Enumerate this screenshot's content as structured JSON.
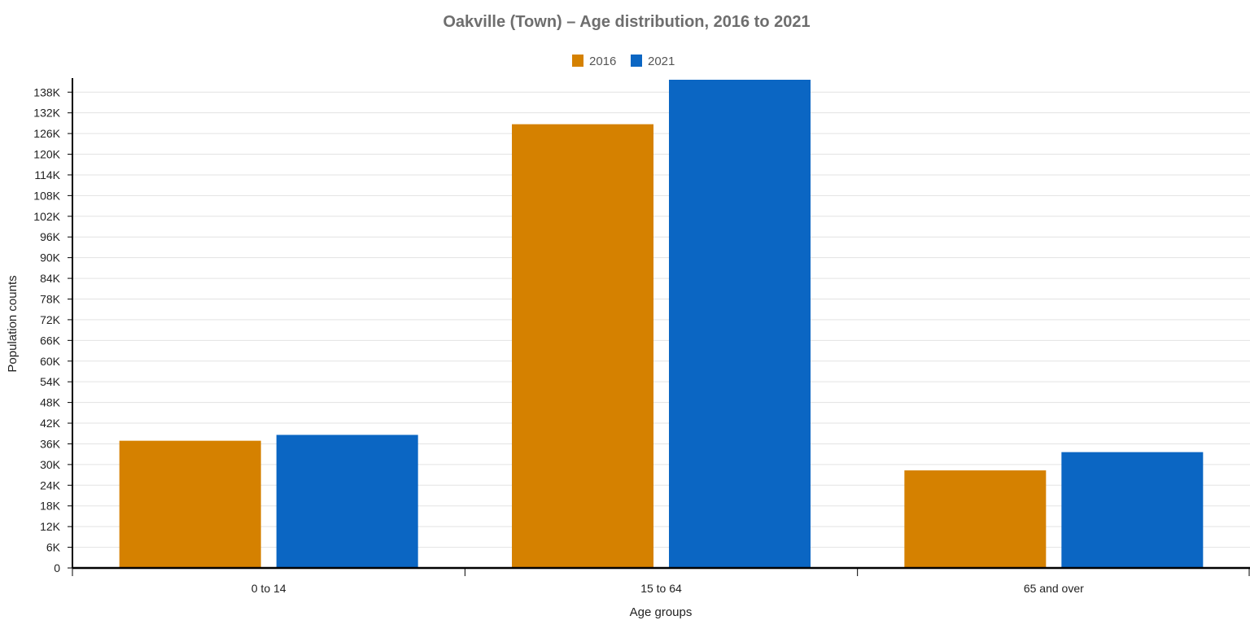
{
  "chart_data": {
    "type": "bar",
    "title": "Oakville (Town) – Age distribution, 2016 to 2021",
    "xlabel": "Age groups",
    "ylabel": "Population counts",
    "categories": [
      "0 to 14",
      "15 to 64",
      "65 and over"
    ],
    "series": [
      {
        "name": "2016",
        "color": "#d58100",
        "values": [
          36900,
          128700,
          28300
        ]
      },
      {
        "name": "2021",
        "color": "#0b66c3",
        "values": [
          38600,
          141600,
          33600
        ]
      }
    ],
    "ylim": [
      0,
      141600
    ],
    "yticks": [
      0,
      6000,
      12000,
      18000,
      24000,
      30000,
      36000,
      42000,
      48000,
      54000,
      60000,
      66000,
      72000,
      78000,
      84000,
      90000,
      96000,
      102000,
      108000,
      114000,
      120000,
      126000,
      132000,
      138000
    ],
    "ytick_labels": [
      "0",
      "6K",
      "12K",
      "18K",
      "24K",
      "30K",
      "36K",
      "42K",
      "48K",
      "54K",
      "60K",
      "66K",
      "72K",
      "78K",
      "84K",
      "90K",
      "96K",
      "102K",
      "108K",
      "114K",
      "120K",
      "126K",
      "132K",
      "138K"
    ],
    "legend_position": "top-center",
    "grid": true
  }
}
